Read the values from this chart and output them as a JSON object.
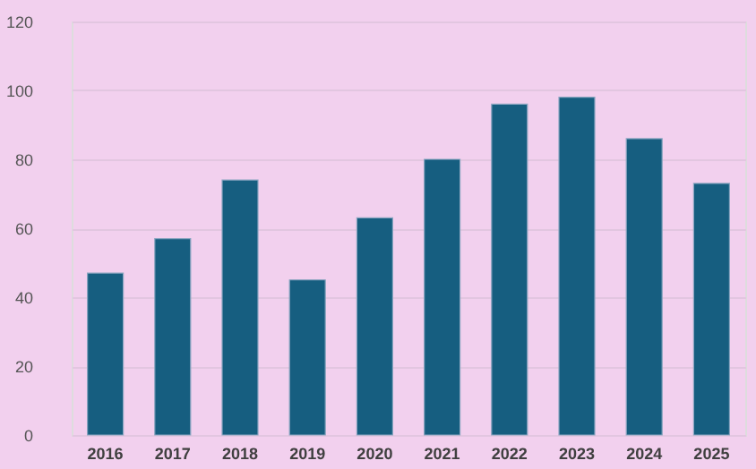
{
  "chart_data": {
    "type": "bar",
    "categories": [
      "2016",
      "2017",
      "2018",
      "2019",
      "2020",
      "2021",
      "2022",
      "2023",
      "2024",
      "2025"
    ],
    "values": [
      47,
      57,
      74,
      45,
      63,
      80,
      96,
      98,
      86,
      73
    ],
    "color": "#165e80",
    "ylim": [
      0,
      120
    ],
    "yticks": [
      0,
      20,
      40,
      60,
      80,
      100,
      120
    ],
    "grid": "y"
  }
}
